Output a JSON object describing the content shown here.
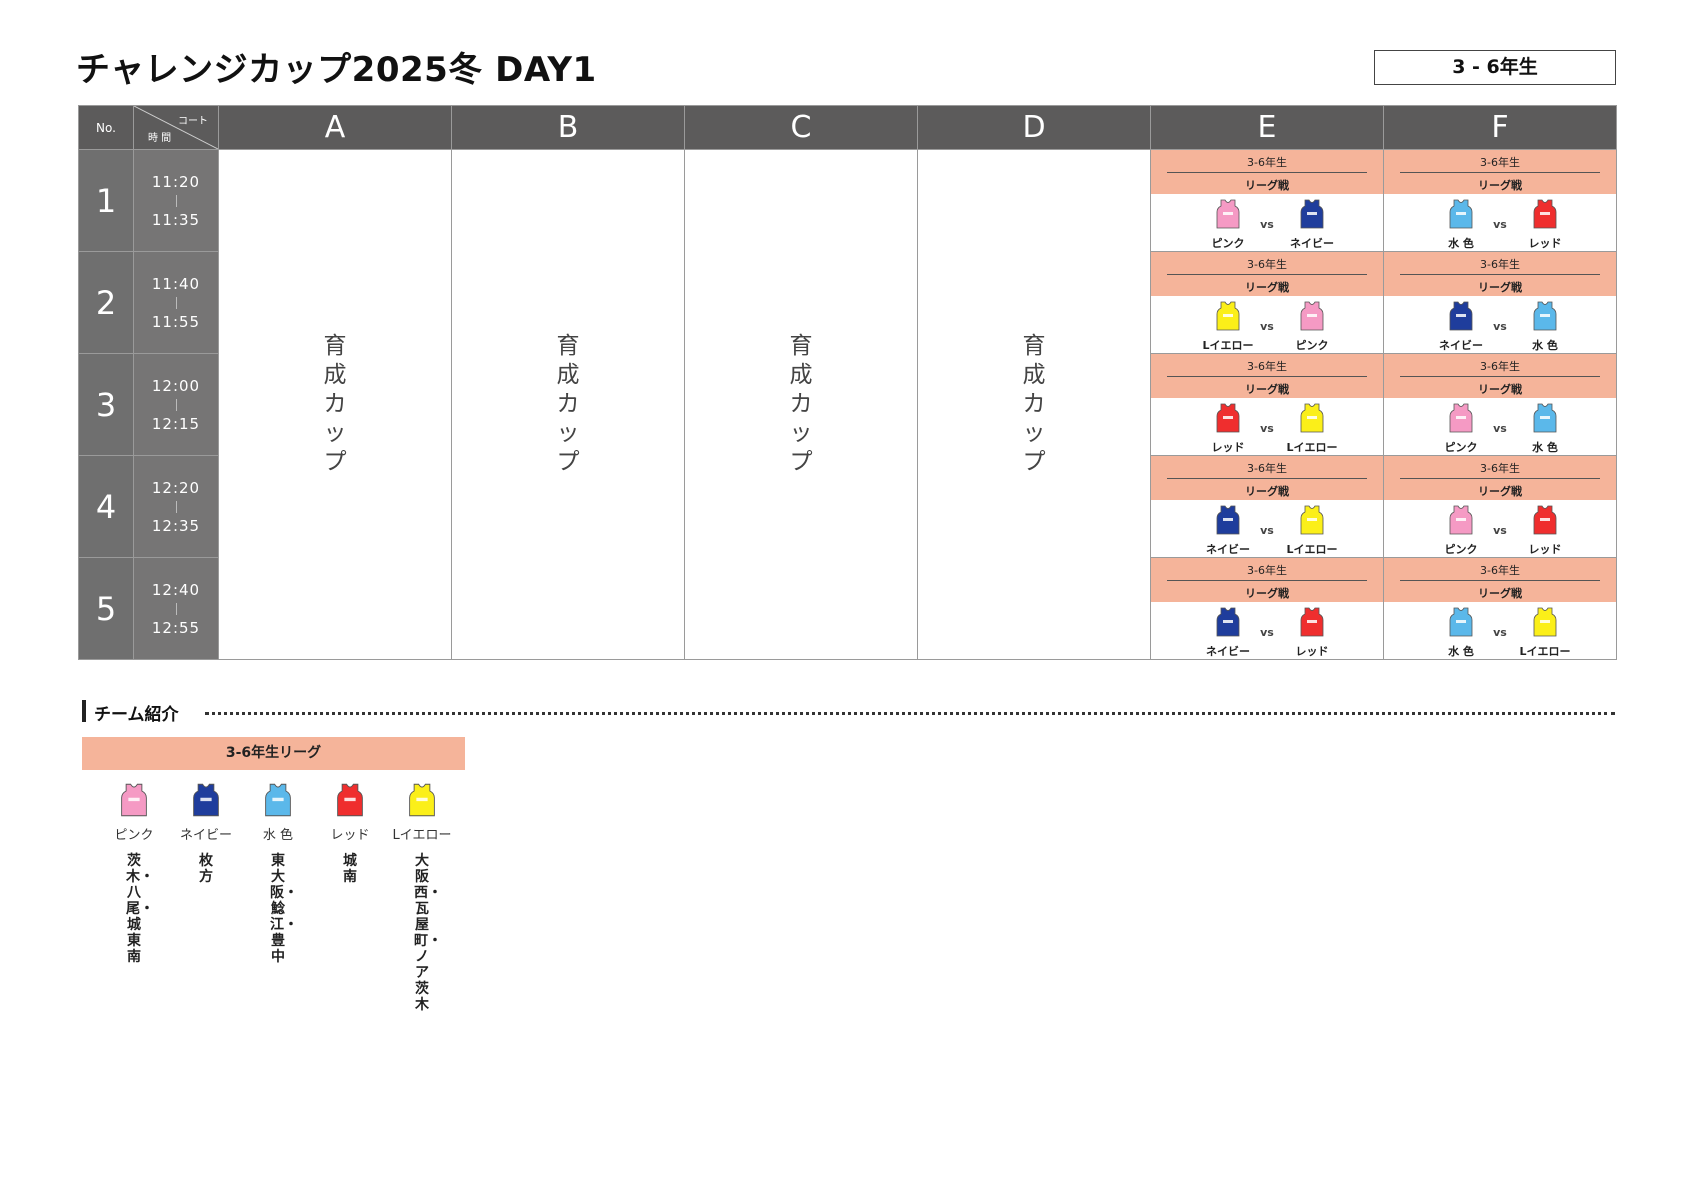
{
  "title": "チャレンジカップ2025冬 DAY1",
  "grade": "3 - 6年生",
  "header": {
    "no": "No.",
    "court": "コート",
    "time": "時 間",
    "courts": [
      "A",
      "B",
      "C",
      "D",
      "E",
      "F"
    ]
  },
  "colors": {
    "ピンク": "#f59ac4",
    "ネイビー": "#1f3d9c",
    "水 色": "#5bb8ea",
    "レッド": "#ef2e2e",
    "Lイエロー": "#fbef19",
    "header_bg": "#5c5b5b",
    "league_band": "#f5b49a"
  },
  "ikusei_label": "育成カップ",
  "rows": [
    {
      "no": "1",
      "start": "11:20",
      "end": "11:35"
    },
    {
      "no": "2",
      "start": "11:40",
      "end": "11:55"
    },
    {
      "no": "3",
      "start": "12:00",
      "end": "12:15"
    },
    {
      "no": "4",
      "start": "12:20",
      "end": "12:35"
    },
    {
      "no": "5",
      "start": "12:40",
      "end": "12:55"
    }
  ],
  "match_grade": "3-6年生",
  "match_type": "リーグ戦",
  "vs": "vs",
  "matches": {
    "E": [
      [
        "ピンク",
        "ネイビー"
      ],
      [
        "Lイエロー",
        "ピンク"
      ],
      [
        "レッド",
        "Lイエロー"
      ],
      [
        "ネイビー",
        "Lイエロー"
      ],
      [
        "ネイビー",
        "レッド"
      ]
    ],
    "F": [
      [
        "水 色",
        "レッド"
      ],
      [
        "ネイビー",
        "水 色"
      ],
      [
        "ピンク",
        "水 色"
      ],
      [
        "ピンク",
        "レッド"
      ],
      [
        "水 色",
        "Lイエロー"
      ]
    ]
  },
  "intro": {
    "title": "チーム紹介",
    "league": "3-6年生リーグ",
    "teams": [
      {
        "color": "ピンク",
        "members": "茨木・八尾・城東南"
      },
      {
        "color": "ネイビー",
        "members": "枚方"
      },
      {
        "color": "水 色",
        "members": "東大阪・鯰江・豊中"
      },
      {
        "color": "レッド",
        "members": "城南"
      },
      {
        "color": "Lイエロー",
        "members": "大阪西・瓦屋町・ノア茨木"
      }
    ]
  }
}
